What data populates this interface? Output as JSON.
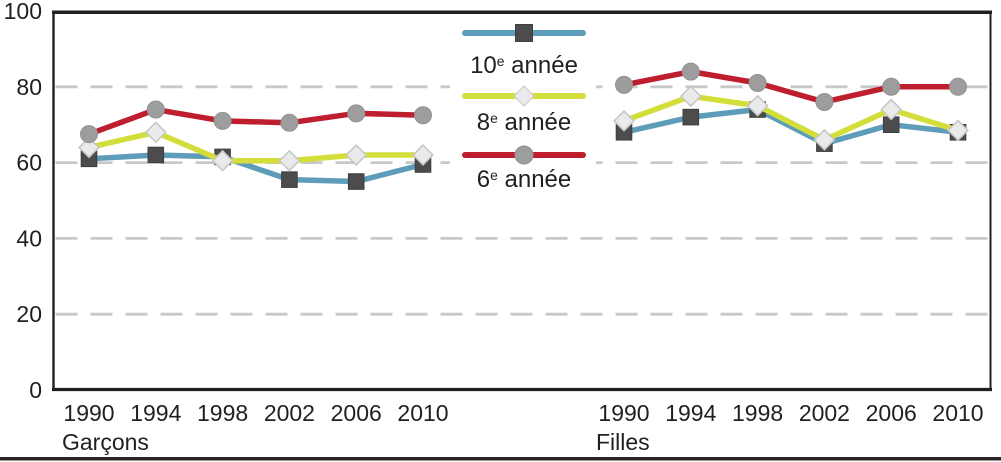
{
  "chart_data": {
    "type": "line",
    "title": "",
    "xlabel": "",
    "ylabel": "",
    "ylim": [
      0,
      100
    ],
    "yticks": [
      "0",
      "20",
      "40",
      "60",
      "80",
      "100"
    ],
    "grid_values": [
      20,
      40,
      60,
      80
    ],
    "grid": "dashed-horizontal",
    "legend_position": "top-center",
    "categories": [
      "1990",
      "1994",
      "1998",
      "2002",
      "2006",
      "2010"
    ],
    "groups": [
      {
        "label": "Garçons",
        "series": [
          {
            "name": "10e année",
            "color": "#5e9db9",
            "marker": "square",
            "values": [
              61,
              62,
              61.5,
              55.5,
              55,
              59.5
            ]
          },
          {
            "name": "8e année",
            "color": "#d4de3b",
            "marker": "diamond",
            "values": [
              64,
              68,
              60.5,
              60.5,
              62,
              62
            ]
          },
          {
            "name": "6e année",
            "color": "#be1e2d",
            "marker": "circle",
            "values": [
              67.5,
              74,
              71,
              70.5,
              73,
              72.5
            ]
          }
        ]
      },
      {
        "label": "Filles",
        "series": [
          {
            "name": "10e année",
            "color": "#5e9db9",
            "marker": "square",
            "values": [
              68,
              72,
              74,
              65,
              70,
              68
            ]
          },
          {
            "name": "8e année",
            "color": "#d4de3b",
            "marker": "diamond",
            "values": [
              71,
              77.5,
              75,
              66,
              74,
              68.5
            ]
          },
          {
            "name": "6e année",
            "color": "#be1e2d",
            "marker": "circle",
            "values": [
              80.5,
              84,
              81,
              76,
              80,
              80
            ]
          }
        ]
      }
    ]
  },
  "legend": {
    "items": [
      {
        "num": "10",
        "sup": "e",
        "rest": " année",
        "color": "#5e9db9",
        "marker": "square"
      },
      {
        "num": "8",
        "sup": "e",
        "rest": " année",
        "color": "#d4de3b",
        "marker": "diamond"
      },
      {
        "num": "6",
        "sup": "e",
        "rest": " année",
        "color": "#be1e2d",
        "marker": "circle"
      }
    ]
  },
  "colors": {
    "line_10e": "#5e9db9",
    "line_8e": "#d4de3b",
    "line_6e": "#be1e2d",
    "marker_square": "#4c4c4c",
    "marker_diamond": "#eaeaea",
    "marker_circle": "#9d9d9d",
    "gridline": "#c8c8c8",
    "frame": "#231f20",
    "text": "#231f20",
    "bottom_rule": "#2a2627"
  }
}
